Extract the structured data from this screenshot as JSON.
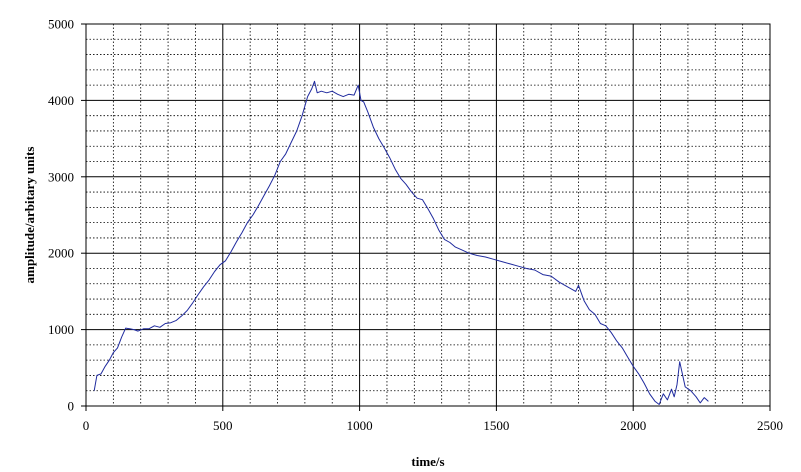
{
  "chart_data": {
    "type": "line",
    "title": "",
    "xlabel": "time/s",
    "ylabel": "amplitude/arbitary units",
    "xlim": [
      0,
      2500
    ],
    "ylim": [
      0,
      5000
    ],
    "x_major_ticks": [
      0,
      500,
      1000,
      1500,
      2000,
      2500
    ],
    "x_minor_step": 100,
    "y_major_ticks": [
      0,
      1000,
      2000,
      3000,
      4000,
      5000
    ],
    "y_minor_step": 200,
    "x_tick_labels": [
      "0",
      "500",
      "1000",
      "1500",
      "2000",
      "2500"
    ],
    "y_tick_labels": [
      "0",
      "1000",
      "2000",
      "3000",
      "4000",
      "5000"
    ],
    "grid": "major solid, minor dotted",
    "line_color": "#1f2a9e",
    "series": [
      {
        "x": [
          30,
          40,
          55,
          70,
          85,
          100,
          115,
          130,
          145,
          160,
          175,
          190,
          210,
          230,
          250,
          270,
          290,
          310,
          330,
          350,
          370,
          390,
          410,
          430,
          450,
          470,
          490,
          510,
          530,
          550,
          570,
          590,
          610,
          630,
          650,
          670,
          690,
          710,
          730,
          750,
          770,
          790,
          810,
          825,
          835,
          845,
          860,
          880,
          900,
          920,
          940,
          960,
          980,
          995,
          1005,
          1015,
          1030,
          1050,
          1070,
          1090,
          1110,
          1130,
          1150,
          1170,
          1190,
          1210,
          1230,
          1250,
          1270,
          1290,
          1310,
          1330,
          1350,
          1370,
          1400,
          1430,
          1460,
          1490,
          1520,
          1550,
          1580,
          1610,
          1640,
          1670,
          1700,
          1730,
          1760,
          1790,
          1800,
          1820,
          1840,
          1860,
          1880,
          1900,
          1920,
          1940,
          1960,
          1980,
          2000,
          2020,
          2040,
          2060,
          2080,
          2095,
          2110,
          2125,
          2140,
          2150,
          2160,
          2170,
          2190,
          2210,
          2230,
          2245,
          2260,
          2275
        ],
        "y": [
          200,
          400,
          420,
          520,
          600,
          700,
          760,
          900,
          1020,
          1010,
          1000,
          980,
          1010,
          1010,
          1050,
          1030,
          1080,
          1090,
          1120,
          1180,
          1250,
          1350,
          1460,
          1560,
          1650,
          1760,
          1850,
          1900,
          2020,
          2150,
          2270,
          2400,
          2500,
          2620,
          2750,
          2880,
          3020,
          3200,
          3300,
          3450,
          3600,
          3800,
          4050,
          4150,
          4250,
          4100,
          4120,
          4100,
          4120,
          4080,
          4050,
          4080,
          4070,
          4200,
          4000,
          3980,
          3850,
          3650,
          3500,
          3380,
          3250,
          3100,
          2980,
          2900,
          2800,
          2720,
          2700,
          2580,
          2450,
          2300,
          2180,
          2140,
          2080,
          2050,
          2000,
          1970,
          1950,
          1920,
          1890,
          1860,
          1830,
          1800,
          1780,
          1720,
          1700,
          1620,
          1560,
          1500,
          1580,
          1380,
          1260,
          1200,
          1080,
          1050,
          960,
          850,
          760,
          640,
          520,
          420,
          300,
          160,
          60,
          20,
          160,
          80,
          220,
          120,
          280,
          580,
          250,
          200,
          120,
          40,
          110,
          60
        ]
      }
    ]
  }
}
